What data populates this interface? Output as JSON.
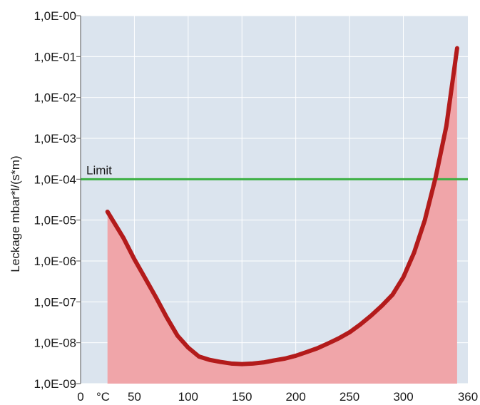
{
  "chart_data": {
    "type": "area",
    "title": "",
    "xlabel": "",
    "ylabel": "Leckage mbar*l/(s*m)",
    "x_unit_label": "°C",
    "xlim": [
      0,
      360
    ],
    "ylim": [
      1e-09,
      1
    ],
    "y_scale": "log",
    "x_ticks": [
      0,
      50,
      100,
      150,
      200,
      250,
      300,
      360
    ],
    "x_tick_labels": [
      "0",
      "50",
      "100",
      "150",
      "200",
      "250",
      "300",
      "360"
    ],
    "y_ticks": [
      1e-09,
      1e-08,
      1e-07,
      1e-06,
      1e-05,
      0.0001,
      0.001,
      0.01,
      0.1,
      1
    ],
    "y_tick_labels": [
      "1,0E-09",
      "1,0E-08",
      "1,0E-07",
      "1,0E-06",
      "1,0E-05",
      "1,0E-04",
      "1,0E-03",
      "1,0E-02",
      "1,0E-01",
      "1,0E-00"
    ],
    "grid": true,
    "series": [
      {
        "color": "#b31b1b",
        "fill_color": "#f0a5a9",
        "x": [
          25,
          40,
          50,
          60,
          70,
          80,
          90,
          100,
          110,
          120,
          130,
          140,
          150,
          160,
          170,
          180,
          190,
          200,
          210,
          220,
          230,
          240,
          250,
          260,
          270,
          280,
          290,
          300,
          310,
          320,
          330,
          340,
          350
        ],
        "y": [
          1.6e-05,
          3.6e-06,
          1.1e-06,
          3.8e-07,
          1.3e-07,
          4.2e-08,
          1.5e-08,
          7.6e-09,
          4.6e-09,
          3.8e-09,
          3.4e-09,
          3.1e-09,
          3e-09,
          3.1e-09,
          3.3e-09,
          3.7e-09,
          4.1e-09,
          4.8e-09,
          5.9e-09,
          7.3e-09,
          9.6e-09,
          1.28e-08,
          1.8e-08,
          2.8e-08,
          4.6e-08,
          8e-08,
          1.5e-07,
          4e-07,
          1.6e-06,
          1e-05,
          0.00011,
          0.002,
          0.16
        ]
      }
    ],
    "reference_lines": [
      {
        "label": "Limit",
        "y": 0.0001,
        "color": "#3cb043"
      }
    ]
  }
}
